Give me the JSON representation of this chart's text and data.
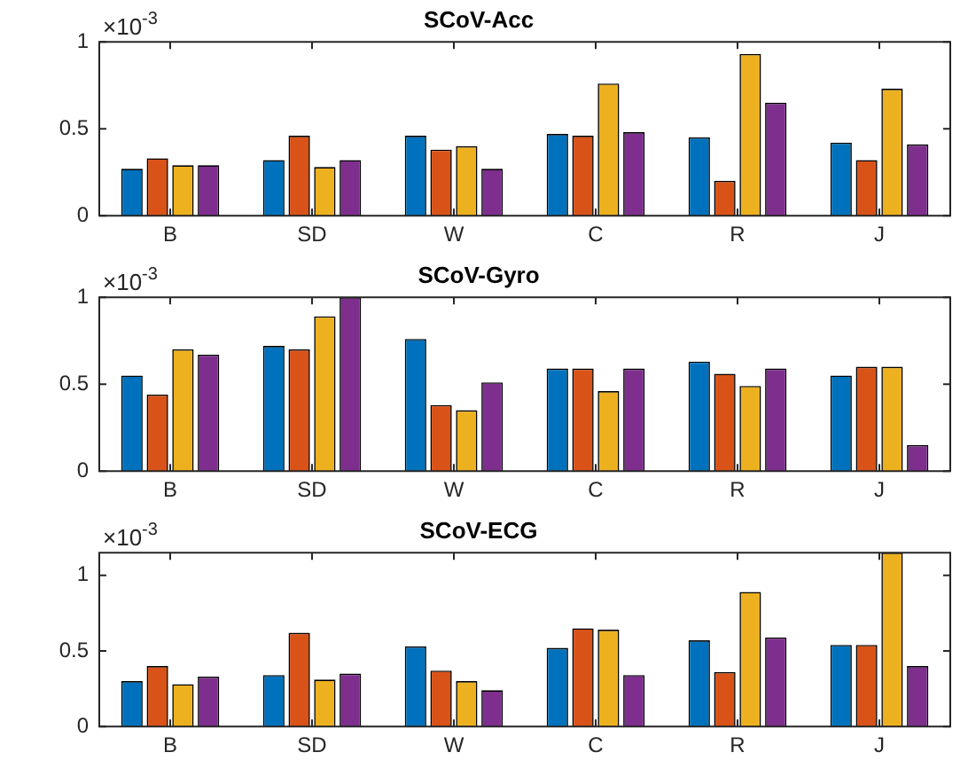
{
  "chart_data": [
    {
      "type": "bar",
      "title": "SCoV-Acc",
      "categories": [
        "B",
        "SD",
        "W",
        "C",
        "R",
        "J"
      ],
      "ylim": [
        0,
        1
      ],
      "yticks": [
        0,
        0.5,
        1
      ],
      "annotations": [
        "×10$^{-3}$"
      ],
      "series": [
        {
          "color": "#0072bd",
          "values": [
            0.27,
            0.32,
            0.46,
            0.47,
            0.45,
            0.42
          ]
        },
        {
          "color": "#d95319",
          "values": [
            0.33,
            0.46,
            0.38,
            0.46,
            0.2,
            0.32
          ]
        },
        {
          "color": "#edb120",
          "values": [
            0.29,
            0.28,
            0.4,
            0.76,
            0.93,
            0.73
          ]
        },
        {
          "color": "#7e2f8e",
          "values": [
            0.29,
            0.32,
            0.27,
            0.48,
            0.65,
            0.41
          ]
        }
      ]
    },
    {
      "type": "bar",
      "title": "SCoV-Gyro",
      "categories": [
        "B",
        "SD",
        "W",
        "C",
        "R",
        "J"
      ],
      "ylim": [
        0,
        1
      ],
      "yticks": [
        0,
        0.5,
        1
      ],
      "annotations": [
        "×10$^{-3}$"
      ],
      "series": [
        {
          "color": "#0072bd",
          "values": [
            0.55,
            0.72,
            0.76,
            0.59,
            0.63,
            0.55
          ]
        },
        {
          "color": "#d95319",
          "values": [
            0.44,
            0.7,
            0.38,
            0.59,
            0.56,
            0.6
          ]
        },
        {
          "color": "#edb120",
          "values": [
            0.7,
            0.89,
            0.35,
            0.46,
            0.49,
            0.6
          ]
        },
        {
          "color": "#7e2f8e",
          "values": [
            0.67,
            1.0,
            0.51,
            0.59,
            0.59,
            0.15
          ]
        }
      ]
    },
    {
      "type": "bar",
      "title": "SCoV-ECG",
      "categories": [
        "B",
        "SD",
        "W",
        "C",
        "R",
        "J"
      ],
      "ylim": [
        0,
        1.15
      ],
      "yticks": [
        0,
        0.5,
        1
      ],
      "annotations": [
        "×10$^{-3}$"
      ],
      "series": [
        {
          "color": "#0072bd",
          "values": [
            0.3,
            0.34,
            0.53,
            0.52,
            0.57,
            0.54
          ]
        },
        {
          "color": "#d95319",
          "values": [
            0.4,
            0.62,
            0.37,
            0.65,
            0.36,
            0.54
          ]
        },
        {
          "color": "#edb120",
          "values": [
            0.28,
            0.31,
            0.3,
            0.64,
            0.89,
            1.15
          ]
        },
        {
          "color": "#7e2f8e",
          "values": [
            0.33,
            0.35,
            0.24,
            0.34,
            0.59,
            0.4
          ]
        }
      ]
    }
  ]
}
